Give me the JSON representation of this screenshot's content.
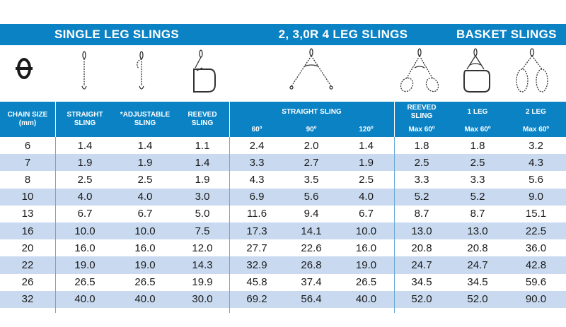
{
  "sections": {
    "single": "SINGLE LEG SLINGS",
    "multi": "2, 3,0R 4 LEG SLINGS",
    "basket": "BASKET SLINGS"
  },
  "headers": {
    "chain_size": "CHAIN SIZE",
    "chain_size_unit": "(mm)",
    "straight": "STRAIGHT",
    "straight_2": "SLING",
    "adjustable": "*ADJUSTABLE",
    "adjustable_2": "SLING",
    "reeved": "REEVED",
    "reeved_2": "SLING",
    "straight_sling": "STRAIGHT SLING",
    "angle_60": "60º",
    "angle_90": "90º",
    "angle_120": "120º",
    "basket_reeved": "REEVED",
    "basket_reeved_2": "SLING",
    "basket_reeved_max": "Max 60º",
    "leg1": "1 LEG",
    "leg1_max": "Max 60º",
    "leg2": "2 LEG",
    "leg2_max": "Max 60º"
  },
  "rows": [
    [
      "6",
      "1.4",
      "1.4",
      "1.1",
      "2.4",
      "2.0",
      "1.4",
      "1.8",
      "1.8",
      "3.2"
    ],
    [
      "7",
      "1.9",
      "1.9",
      "1.4",
      "3.3",
      "2.7",
      "1.9",
      "2.5",
      "2.5",
      "4.3"
    ],
    [
      "8",
      "2.5",
      "2.5",
      "1.9",
      "4.3",
      "3.5",
      "2.5",
      "3.3",
      "3.3",
      "5.6"
    ],
    [
      "10",
      "4.0",
      "4.0",
      "3.0",
      "6.9",
      "5.6",
      "4.0",
      "5.2",
      "5.2",
      "9.0"
    ],
    [
      "13",
      "6.7",
      "6.7",
      "5.0",
      "11.6",
      "9.4",
      "6.7",
      "8.7",
      "8.7",
      "15.1"
    ],
    [
      "16",
      "10.0",
      "10.0",
      "7.5",
      "17.3",
      "14.1",
      "10.0",
      "13.0",
      "13.0",
      "22.5"
    ],
    [
      "20",
      "16.0",
      "16.0",
      "12.0",
      "27.7",
      "22.6",
      "16.0",
      "20.8",
      "20.8",
      "36.0"
    ],
    [
      "22",
      "19.0",
      "19.0",
      "14.3",
      "32.9",
      "26.8",
      "19.0",
      "24.7",
      "24.7",
      "42.8"
    ],
    [
      "26",
      "26.5",
      "26.5",
      "19.9",
      "45.8",
      "37.4",
      "26.5",
      "34.5",
      "34.5",
      "59.6"
    ],
    [
      "32",
      "40.0",
      "40.0",
      "30.0",
      "69.2",
      "56.4",
      "40.0",
      "52.0",
      "52.0",
      "90.0"
    ]
  ],
  "icons": [
    "chain-link-icon",
    "straight-sling-icon",
    "adjustable-sling-icon",
    "reeved-sling-icon",
    "two-leg-sling-icon",
    "reeved-basket-icon",
    "one-leg-basket-icon",
    "two-leg-basket-icon"
  ],
  "colors": {
    "header_blue": "#0b82c4",
    "alt_row": "#c9daf0"
  }
}
